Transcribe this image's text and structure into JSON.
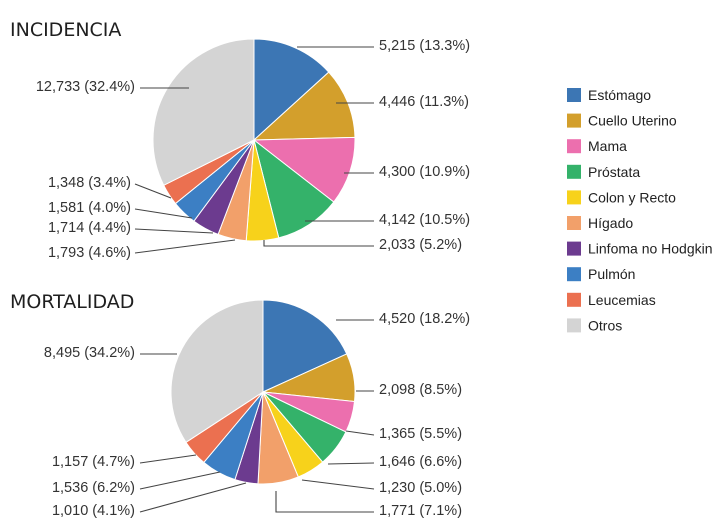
{
  "colors": {
    "Estómago": "#3c76b4",
    "Cuello Uterino": "#d39f2c",
    "Mama": "#ec6fae",
    "Próstata": "#34b26a",
    "Colon y Recto": "#f7d21b",
    "Hígado": "#f2a06a",
    "Linfoma no Hodgkin": "#6c3b8f",
    "Pulmón": "#3c7fc4",
    "Leucemias": "#eb7050",
    "Otros": "#d4d4d4"
  },
  "legend": [
    "Estómago",
    "Cuello Uterino",
    "Mama",
    "Próstata",
    "Colon y Recto",
    "Hígado",
    "Linfoma no Hodgkin",
    "Pulmón",
    "Leucemias",
    "Otros"
  ],
  "chart_data": [
    {
      "type": "pie",
      "title": "INCIDENCIA",
      "slices": [
        {
          "category": "Estómago",
          "value": 5215,
          "label": "5,215 (13.3%)"
        },
        {
          "category": "Cuello Uterino",
          "value": 4446,
          "label": "4,446 (11.3%)"
        },
        {
          "category": "Mama",
          "value": 4300,
          "label": "4,300 (10.9%)"
        },
        {
          "category": "Próstata",
          "value": 4142,
          "label": "4,142 (10.5%)"
        },
        {
          "category": "Colon y Recto",
          "value": 2033,
          "label": "2,033 (5.2%)"
        },
        {
          "category": "Hígado",
          "value": 1793,
          "label": "1,793 (4.6%)"
        },
        {
          "category": "Linfoma no Hodgkin",
          "value": 1714,
          "label": "1,714 (4.4%)"
        },
        {
          "category": "Pulmón",
          "value": 1581,
          "label": "1,581 (4.0%)"
        },
        {
          "category": "Leucemias",
          "value": 1348,
          "label": "1,348 (3.4%)"
        },
        {
          "category": "Otros",
          "value": 12733,
          "label": "12,733 (32.4%)"
        }
      ]
    },
    {
      "type": "pie",
      "title": "MORTALIDAD",
      "slices": [
        {
          "category": "Estómago",
          "value": 4520,
          "label": "4,520 (18.2%)"
        },
        {
          "category": "Cuello Uterino",
          "value": 2098,
          "label": "2,098 (8.5%)"
        },
        {
          "category": "Mama",
          "value": 1365,
          "label": "1,365 (5.5%)"
        },
        {
          "category": "Próstata",
          "value": 1646,
          "label": "1,646 (6.6%)"
        },
        {
          "category": "Colon y Recto",
          "value": 1230,
          "label": "1,230 (5.0%)"
        },
        {
          "category": "Hígado",
          "value": 1771,
          "label": "1,771 (7.1%)"
        },
        {
          "category": "Linfoma no Hodgkin",
          "value": 1010,
          "label": "1,010 (4.1%)"
        },
        {
          "category": "Pulmón",
          "value": 1536,
          "label": "1,536 (6.2%)"
        },
        {
          "category": "Leucemias",
          "value": 1157,
          "label": "1,157 (4.7%)"
        },
        {
          "category": "Otros",
          "value": 8495,
          "label": "8,495 (34.2%)"
        }
      ]
    }
  ]
}
